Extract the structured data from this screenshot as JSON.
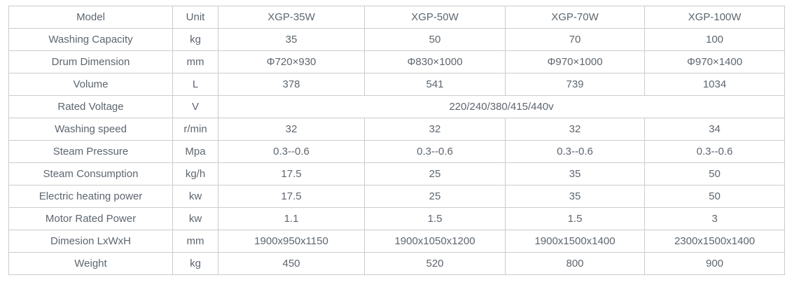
{
  "table": {
    "name": "washer-specifications",
    "text_color": "#5d666f",
    "border_color": "#cccccc",
    "background_color": "#ffffff",
    "columns": [
      "Model",
      "Unit",
      "XGP-35W",
      "XGP-50W",
      "XGP-70W",
      "XGP-100W"
    ],
    "rows": [
      {
        "label": "Washing Capacity",
        "unit": "kg",
        "values": [
          "35",
          "50",
          "70",
          "100"
        ]
      },
      {
        "label": "Drum Dimension",
        "unit": "mm",
        "values": [
          "Φ720×930",
          "Φ830×1000",
          "Φ970×1000",
          "Φ970×1400"
        ]
      },
      {
        "label": "Volume",
        "unit": "L",
        "values": [
          "378",
          "541",
          "739",
          "1034"
        ]
      },
      {
        "label": "Rated Voltage",
        "unit": "V",
        "merged": true,
        "values": [
          "220/240/380/415/440v"
        ]
      },
      {
        "label": "Washing speed",
        "unit": "r/min",
        "values": [
          "32",
          "32",
          "32",
          "34"
        ]
      },
      {
        "label": "Steam Pressure",
        "unit": "Mpa",
        "values": [
          "0.3--0.6",
          "0.3--0.6",
          "0.3--0.6",
          "0.3--0.6"
        ]
      },
      {
        "label": "Steam Consumption",
        "unit": "kg/h",
        "values": [
          "17.5",
          "25",
          "35",
          "50"
        ]
      },
      {
        "label": "Electric heating power",
        "unit": "kw",
        "values": [
          "17.5",
          "25",
          "35",
          "50"
        ]
      },
      {
        "label": "Motor Rated Power",
        "unit": "kw",
        "values": [
          "1.1",
          "1.5",
          "1.5",
          "3"
        ]
      },
      {
        "label": "Dimesion LxWxH",
        "unit": "mm",
        "values": [
          "1900x950x1150",
          "1900x1050x1200",
          "1900x1500x1400",
          "2300x1500x1400"
        ]
      },
      {
        "label": "Weight",
        "unit": "kg",
        "values": [
          "450",
          "520",
          "800",
          "900"
        ]
      }
    ]
  }
}
